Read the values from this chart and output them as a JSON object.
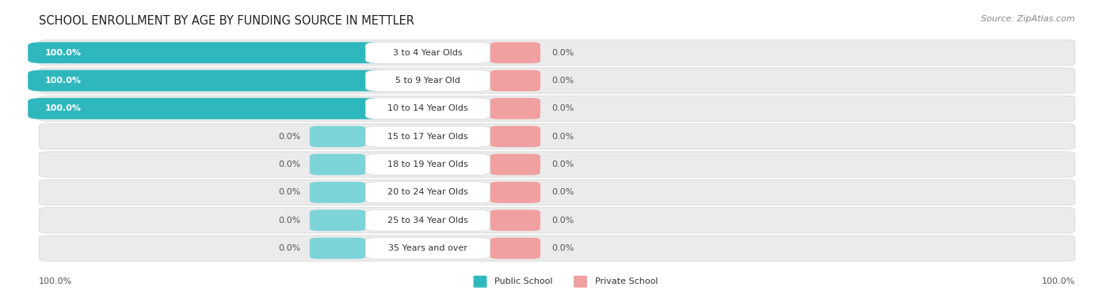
{
  "title": "SCHOOL ENROLLMENT BY AGE BY FUNDING SOURCE IN METTLER",
  "source_text": "Source: ZipAtlas.com",
  "categories": [
    "3 to 4 Year Olds",
    "5 to 9 Year Old",
    "10 to 14 Year Olds",
    "15 to 17 Year Olds",
    "18 to 19 Year Olds",
    "20 to 24 Year Olds",
    "25 to 34 Year Olds",
    "35 Years and over"
  ],
  "public_values": [
    100.0,
    100.0,
    100.0,
    0.0,
    0.0,
    0.0,
    0.0,
    0.0
  ],
  "private_values": [
    0.0,
    0.0,
    0.0,
    0.0,
    0.0,
    0.0,
    0.0,
    0.0
  ],
  "public_color": "#2eb8be",
  "public_color_light": "#7dd4d8",
  "private_color": "#f0a0a0",
  "row_bg_color": "#ebebeb",
  "row_border_color": "#d4d4d4",
  "public_label": "Public School",
  "private_label": "Private School",
  "title_fontsize": 10.5,
  "label_fontsize": 8,
  "category_fontsize": 8,
  "source_fontsize": 8
}
